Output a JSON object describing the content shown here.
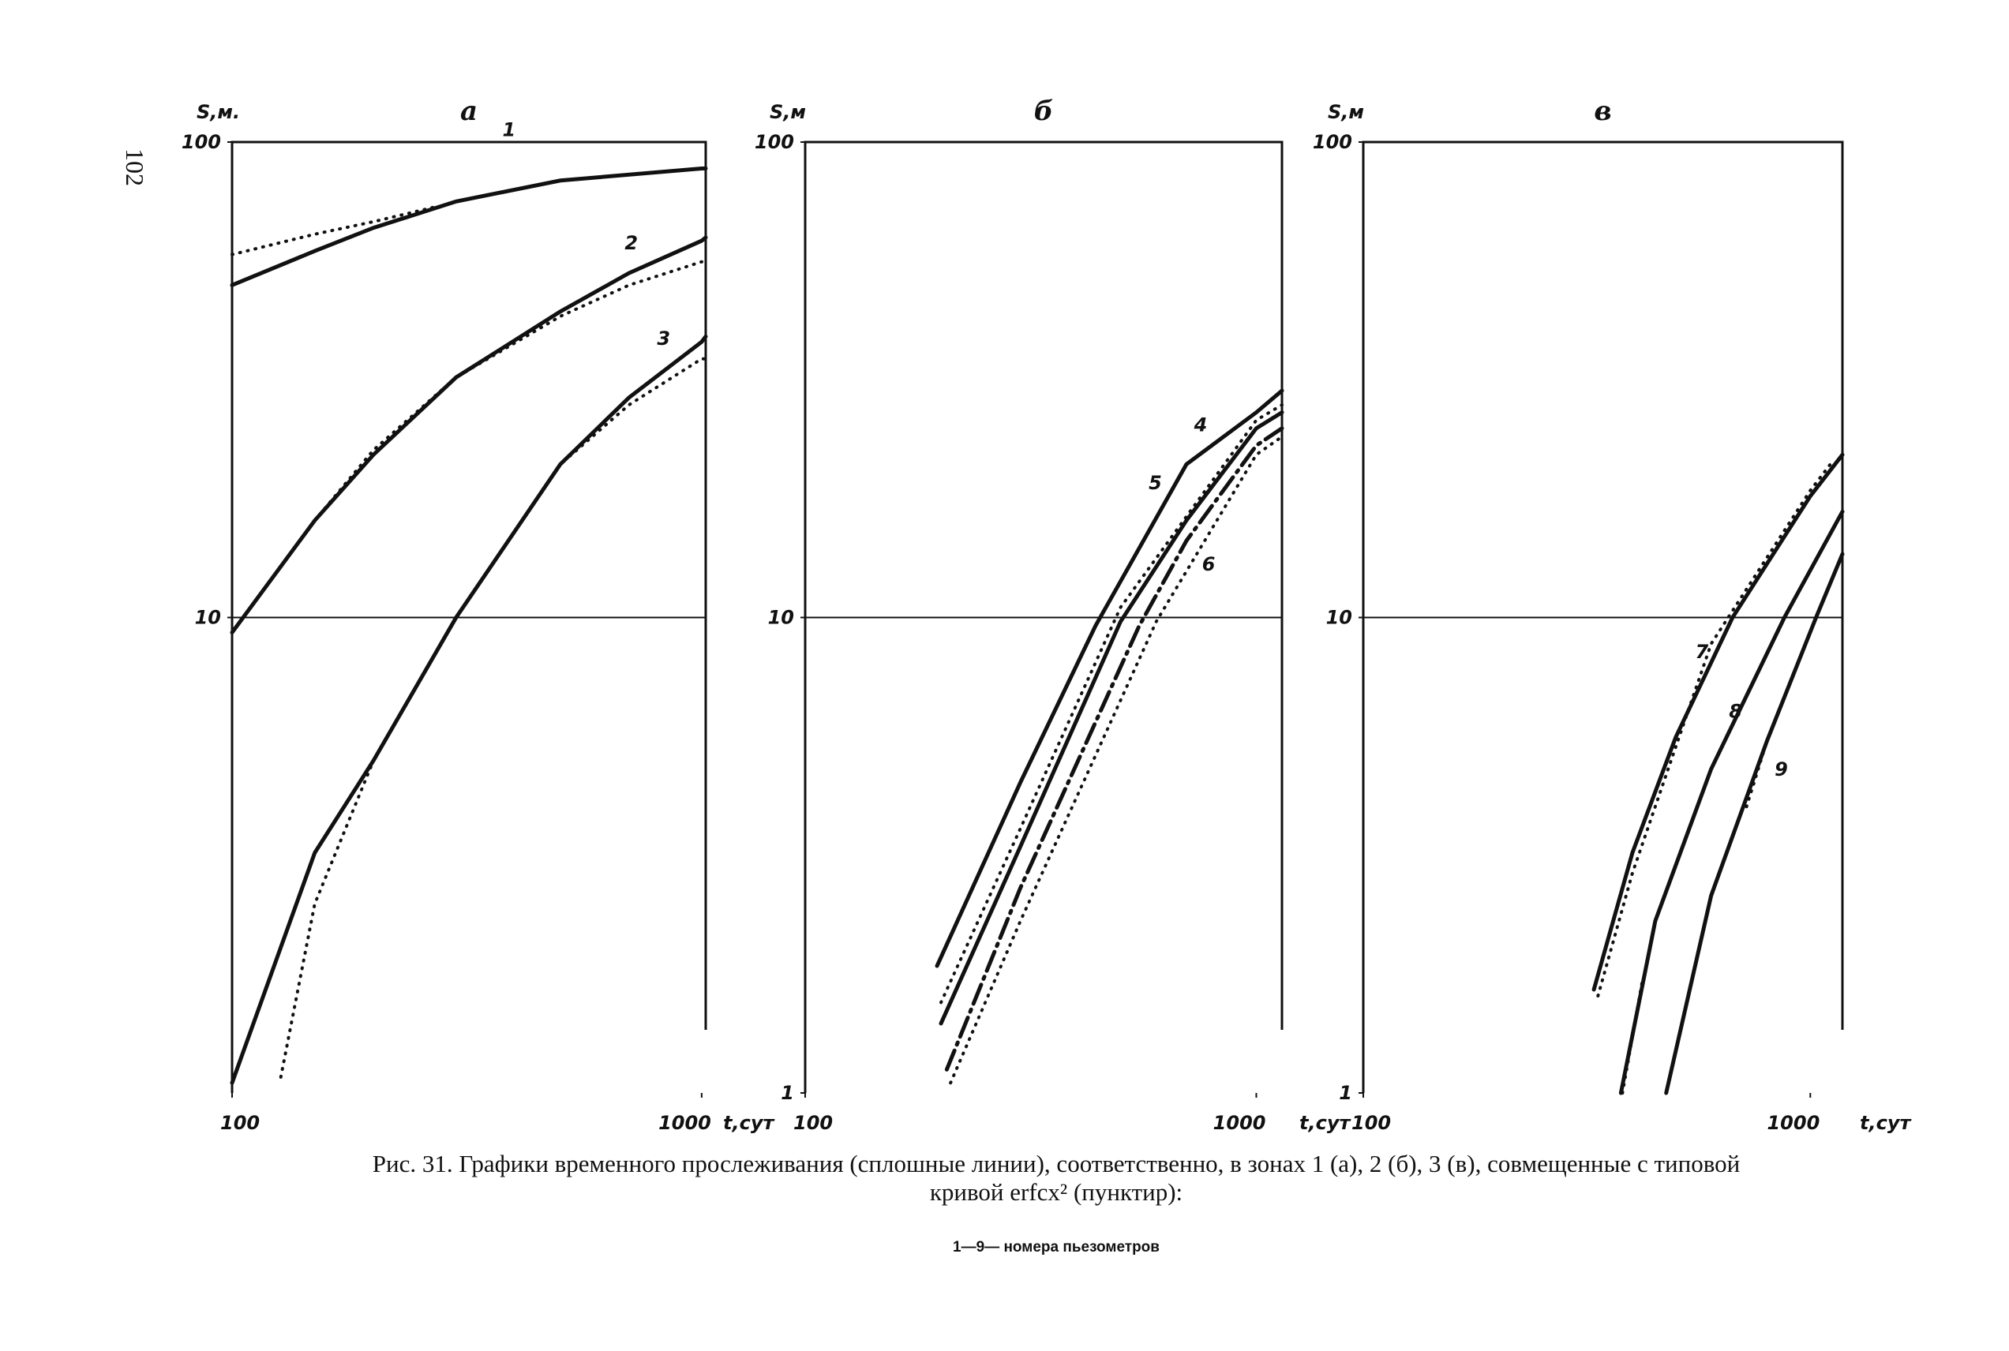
{
  "page_number": "102",
  "chart_data": [
    {
      "type": "line",
      "title": "а",
      "xlabel": "t,сут",
      "ylabel": "S,м.",
      "xscale": "log",
      "yscale": "log",
      "xlim": [
        100,
        1020
      ],
      "ylim": [
        1,
        100
      ],
      "xticks": [
        100,
        1000
      ],
      "yticks": [
        10,
        100
      ],
      "grid": true,
      "series": [
        {
          "name": "1",
          "style": "solid",
          "color": "#111111",
          "x": [
            100,
            150,
            200,
            300,
            500,
            1000,
            1020
          ],
          "values": [
            50,
            59,
            66,
            75,
            83,
            88,
            88
          ]
        },
        {
          "style": "dotted",
          "color": "#111111",
          "x": [
            100,
            150,
            200,
            270
          ],
          "values": [
            58,
            64,
            68,
            73
          ]
        },
        {
          "name": "2",
          "style": "solid",
          "color": "#111111",
          "x": [
            100,
            150,
            200,
            300,
            500,
            700,
            1000,
            1020
          ],
          "values": [
            9.3,
            16,
            22,
            32,
            44,
            53,
            62,
            63
          ]
        },
        {
          "style": "dotted",
          "color": "#111111",
          "x": [
            150,
            200,
            300,
            500,
            700,
            1000,
            1020
          ],
          "values": [
            16,
            22.5,
            32,
            43,
            50,
            56,
            56
          ]
        },
        {
          "name": "3",
          "style": "solid",
          "color": "#111111",
          "x": [
            100,
            150,
            200,
            300,
            500,
            700,
            1000,
            1020
          ],
          "values": [
            1.05,
            3.2,
            5.0,
            10,
            21,
            29,
            38,
            39
          ]
        },
        {
          "style": "dotted",
          "color": "#111111",
          "x": [
            127,
            150,
            200,
            300,
            500,
            700,
            1000,
            1020
          ],
          "values": [
            1.08,
            2.5,
            5.0,
            10,
            21,
            28,
            35,
            35
          ]
        }
      ]
    },
    {
      "type": "line",
      "title": "б",
      "xlabel": "t,сут",
      "ylabel": "S,м",
      "xscale": "log",
      "yscale": "log",
      "xlim": [
        100,
        1140
      ],
      "ylim": [
        1,
        100
      ],
      "xticks": [
        100,
        1000
      ],
      "yticks": [
        1,
        10,
        100
      ],
      "grid": true,
      "series": [
        {
          "name": "4",
          "style": "solid",
          "color": "#111111",
          "x": [
            196,
            300,
            440,
            700,
            1000,
            1140
          ],
          "values": [
            1.85,
            4.5,
            9.6,
            21,
            27,
            30
          ]
        },
        {
          "name": "5",
          "style": "solid",
          "color": "#111111",
          "x": [
            200,
            300,
            500,
            700,
            1000,
            1140
          ],
          "values": [
            1.4,
            3.3,
            9.8,
            16,
            25,
            27
          ]
        },
        {
          "name": "6",
          "style": "dashdot",
          "color": "#111111",
          "x": [
            206,
            300,
            550,
            700,
            1000,
            1140
          ],
          "values": [
            1.12,
            2.7,
            9.6,
            14.5,
            23,
            25
          ]
        },
        {
          "style": "dotted",
          "color": "#111111",
          "x": [
            200,
            300,
            500,
            1000,
            1140
          ],
          "values": [
            1.55,
            3.6,
            10.5,
            26,
            28
          ]
        },
        {
          "style": "dotted",
          "color": "#111111",
          "x": [
            210,
            300,
            600,
            1000,
            1140
          ],
          "values": [
            1.05,
            2.3,
            9.8,
            22,
            24
          ]
        }
      ]
    },
    {
      "type": "line",
      "title": "в",
      "xlabel": "t,сут",
      "ylabel": "S,м",
      "xscale": "log",
      "yscale": "log",
      "xlim": [
        100,
        1180
      ],
      "ylim": [
        1,
        100
      ],
      "xticks": [
        100,
        1000
      ],
      "yticks": [
        1,
        10,
        100
      ],
      "grid": true,
      "series": [
        {
          "name": "7",
          "style": "solid",
          "color": "#111111",
          "x": [
            328,
            400,
            500,
            670,
            1000,
            1180
          ],
          "values": [
            1.65,
            3.2,
            5.6,
            10,
            18,
            22
          ]
        },
        {
          "style": "dotted",
          "color": "#111111",
          "x": [
            335,
            400,
            600,
            1000,
            1130
          ],
          "values": [
            1.6,
            2.9,
            8.8,
            18.5,
            21.5
          ]
        },
        {
          "name": "8",
          "style": "solid",
          "color": "#111111",
          "x": [
            377,
            450,
            600,
            875,
            1180
          ],
          "values": [
            1,
            2.3,
            4.8,
            10,
            16.7
          ]
        },
        {
          "style": "dotted",
          "color": "#111111",
          "x": [
            380,
            420
          ],
          "values": [
            1,
            1.7
          ]
        },
        {
          "name": "9",
          "style": "solid",
          "color": "#111111",
          "x": [
            476,
            600,
            800,
            1030,
            1180
          ],
          "values": [
            1,
            2.6,
            5.5,
            10,
            13.6
          ]
        },
        {
          "style": "dotted",
          "color": "#111111",
          "x": [
            720,
            800
          ],
          "values": [
            4,
            5.5
          ]
        }
      ]
    }
  ],
  "caption": {
    "line1": "Рис. 31. Графики временного прослеживания (сплошные линии), соответственно, в зонах 1 (а), 2 (б), 3 (в), совмещенные с типовой",
    "line2": "кривой erfcx² (пунктир):",
    "note": "1—9— номера пьезометров"
  }
}
